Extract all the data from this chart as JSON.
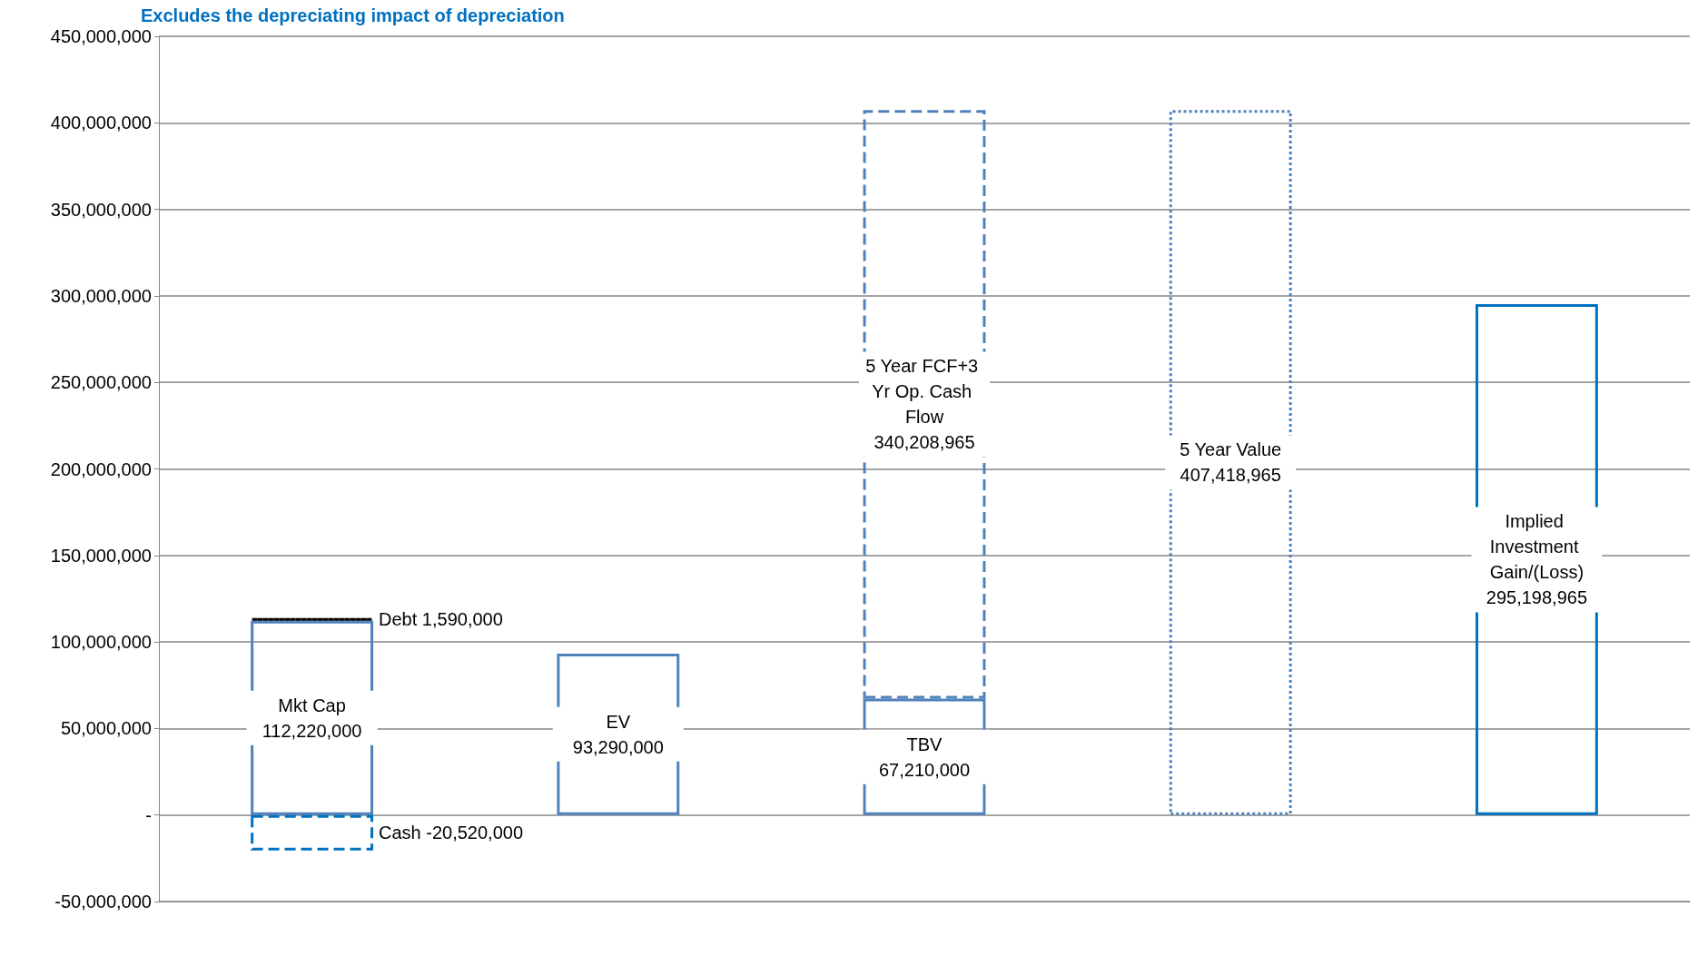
{
  "chart_data": {
    "type": "bar",
    "title": "Excludes the depreciating impact of depreciation",
    "categories": [
      null,
      null,
      null,
      null,
      null
    ],
    "stacked": true,
    "legend": false,
    "grid": "y",
    "ylim": [
      -50000000,
      450000000
    ],
    "yticks": [
      {
        "value": -50000000,
        "label": "-50,000,000"
      },
      {
        "value": 0,
        "label": "-"
      },
      {
        "value": 50000000,
        "label": "50,000,000"
      },
      {
        "value": 100000000,
        "label": "100,000,000"
      },
      {
        "value": 150000000,
        "label": "150,000,000"
      },
      {
        "value": 200000000,
        "label": "200,000,000"
      },
      {
        "value": 250000000,
        "label": "250,000,000"
      },
      {
        "value": 300000000,
        "label": "300,000,000"
      },
      {
        "value": 350000000,
        "label": "350,000,000"
      },
      {
        "value": 400000000,
        "label": "400,000,000"
      },
      {
        "value": 450000000,
        "label": "450,000,000"
      }
    ],
    "series": [
      {
        "name": "Mkt Cap",
        "color": "#4f81bd",
        "line_style": "solid",
        "values": [
          112220000,
          null,
          null,
          null,
          null
        ],
        "value_labels": [
          "112,220,000",
          null,
          null,
          null,
          null
        ]
      },
      {
        "name": "Cash",
        "color": "#0070c0",
        "line_style": "dashed",
        "values": [
          -20520000,
          null,
          null,
          null,
          null
        ],
        "value_labels": [
          "-20,520,000",
          null,
          null,
          null,
          null
        ]
      },
      {
        "name": "Debt",
        "color": "#000000",
        "line_style": "dotted",
        "values": [
          1590000,
          null,
          null,
          null,
          null
        ],
        "value_labels": [
          "1,590,000",
          null,
          null,
          null,
          null
        ]
      },
      {
        "name": "EV",
        "color": "#4f81bd",
        "line_style": "solid",
        "values": [
          null,
          93290000,
          null,
          null,
          null
        ],
        "value_labels": [
          null,
          "93,290,000",
          null,
          null,
          null
        ]
      },
      {
        "name": "TBV",
        "color": "#4f81bd",
        "line_style": "solid",
        "values": [
          null,
          null,
          67210000,
          null,
          null
        ],
        "value_labels": [
          null,
          null,
          "67,210,000",
          null,
          null
        ]
      },
      {
        "name": "5 Year FCF+3 Yr Op. Cash Flow",
        "color": "#4f81bd",
        "line_style": "dashed",
        "values": [
          null,
          null,
          340208965,
          null,
          null
        ],
        "value_labels": [
          null,
          null,
          "340,208,965",
          null,
          null
        ]
      },
      {
        "name": "5 Year Value",
        "color": "#4f81bd",
        "line_style": "dotted",
        "values": [
          null,
          null,
          null,
          407418965,
          null
        ],
        "value_labels": [
          null,
          null,
          null,
          "407,418,965",
          null
        ]
      },
      {
        "name": "Implied Investment Gain/(Loss)",
        "color": "#0070c0",
        "line_style": "solid",
        "values": [
          null,
          null,
          null,
          null,
          295198965
        ],
        "value_labels": [
          null,
          null,
          null,
          null,
          "295,198,965"
        ]
      }
    ]
  }
}
